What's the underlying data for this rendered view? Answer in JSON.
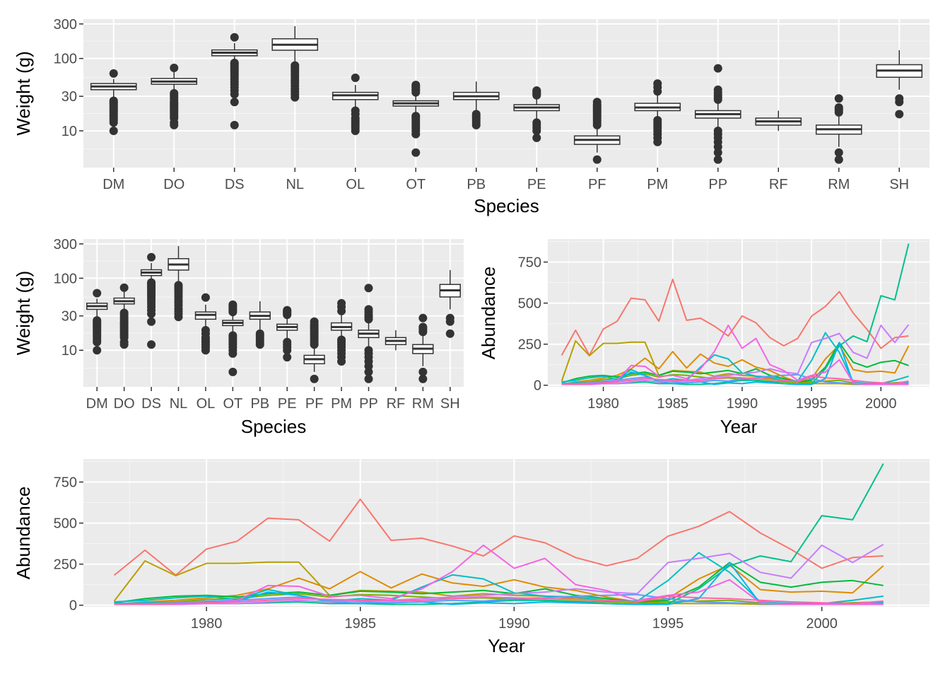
{
  "chart_data": [
    {
      "type": "box",
      "panel": "top",
      "xlabel": "Species",
      "ylabel": "Weight (g)",
      "yscale": "log10",
      "ylim": [
        3.1,
        350
      ],
      "yticks": [
        10,
        30,
        100,
        300
      ],
      "ytick_labels": [
        "10",
        "30",
        "100",
        "300"
      ],
      "categories": [
        "DM",
        "DO",
        "DS",
        "NL",
        "OL",
        "OT",
        "PB",
        "PE",
        "PF",
        "PM",
        "PP",
        "RF",
        "RM",
        "SH"
      ],
      "boxes": [
        {
          "q1": 37,
          "median": 41,
          "q3": 45,
          "lower": 27,
          "upper": 52,
          "outliers": [
            62,
            26,
            25,
            24,
            23,
            22,
            21,
            20,
            19,
            18,
            17,
            16,
            15,
            14,
            13,
            10
          ]
        },
        {
          "q1": 44,
          "median": 48,
          "q3": 53,
          "lower": 34,
          "upper": 65,
          "outliers": [
            74,
            33,
            31,
            29,
            27,
            25,
            24,
            23,
            22,
            21,
            20,
            19,
            18,
            17,
            16,
            15,
            13,
            12
          ]
        },
        {
          "q1": 109,
          "median": 120,
          "q3": 131,
          "lower": 88,
          "upper": 163,
          "outliers": [
            196,
            87,
            84,
            80,
            76,
            72,
            68,
            64,
            60,
            56,
            52,
            48,
            44,
            40,
            36,
            32,
            25,
            12
          ]
        },
        {
          "q1": 130,
          "median": 155,
          "q3": 187,
          "lower": 85,
          "upper": 280,
          "outliers": [
            80,
            75,
            70,
            65,
            60,
            55,
            50,
            46,
            42,
            38,
            35,
            32,
            29
          ]
        },
        {
          "q1": 27,
          "median": 31,
          "q3": 34,
          "lower": 21,
          "upper": 43,
          "outliers": [
            54,
            19,
            17,
            15,
            14,
            13,
            12,
            11,
            10
          ]
        },
        {
          "q1": 22,
          "median": 24,
          "q3": 26,
          "lower": 17,
          "upper": 32,
          "outliers": [
            43,
            41,
            39,
            37,
            36,
            34,
            16,
            15,
            14,
            13,
            12,
            11,
            10,
            9,
            5
          ]
        },
        {
          "q1": 27,
          "median": 30,
          "q3": 34,
          "lower": 19,
          "upper": 48,
          "outliers": [
            17,
            16,
            15,
            14,
            13,
            12
          ]
        },
        {
          "q1": 19,
          "median": 21,
          "q3": 23,
          "lower": 14,
          "upper": 29,
          "outliers": [
            36,
            35,
            34,
            33,
            32,
            31,
            13,
            12,
            11,
            10,
            8
          ]
        },
        {
          "q1": 6.5,
          "median": 7.5,
          "q3": 8.5,
          "lower": 5,
          "upper": 11,
          "outliers": [
            25,
            23,
            22,
            21,
            20,
            19,
            18,
            17,
            16,
            15,
            14,
            13,
            12,
            4
          ]
        },
        {
          "q1": 19,
          "median": 21,
          "q3": 24,
          "lower": 15,
          "upper": 31,
          "outliers": [
            45,
            40,
            35,
            14,
            13,
            12,
            11,
            10,
            9,
            8,
            7
          ]
        },
        {
          "q1": 15,
          "median": 17,
          "q3": 19,
          "lower": 11,
          "upper": 25,
          "outliers": [
            73,
            37,
            34,
            31,
            29,
            27,
            10,
            9,
            8,
            7,
            6,
            5,
            4
          ]
        },
        {
          "q1": 12,
          "median": 13.5,
          "q3": 15,
          "lower": 10,
          "upper": 19,
          "outliers": []
        },
        {
          "q1": 9,
          "median": 10.5,
          "q3": 12,
          "lower": 6,
          "upper": 16,
          "outliers": [
            28,
            21,
            20,
            19,
            18,
            5,
            4
          ]
        },
        {
          "q1": 55,
          "median": 68,
          "q3": 82,
          "lower": 37,
          "upper": 130,
          "outliers": [
            28,
            25,
            17
          ]
        }
      ]
    },
    {
      "type": "box",
      "panel": "middle-left",
      "xlabel": "Species",
      "ylabel": "Weight (g)",
      "same_data_as_panel": "top"
    },
    {
      "type": "line",
      "panel": "middle-right",
      "xlabel": "Year",
      "ylabel": "Abundance",
      "xlim": [
        1976,
        2003.5
      ],
      "ylim": [
        -10,
        890
      ],
      "xticks": [
        1980,
        1985,
        1990,
        1995,
        2000
      ],
      "yticks": [
        0,
        250,
        500,
        750
      ],
      "x": [
        1977,
        1978,
        1979,
        1980,
        1981,
        1982,
        1983,
        1984,
        1985,
        1986,
        1987,
        1988,
        1989,
        1990,
        1991,
        1992,
        1993,
        1994,
        1995,
        1996,
        1997,
        1998,
        1999,
        2000,
        2001,
        2002
      ],
      "series": [
        {
          "color": "#F8766D",
          "values": [
            182,
            335,
            183,
            342,
            390,
            530,
            520,
            390,
            645,
            395,
            408,
            360,
            300,
            422,
            380,
            290,
            240,
            285,
            420,
            480,
            570,
            440,
            340,
            225,
            290,
            300
          ]
        },
        {
          "color": "#DE8C00",
          "values": [
            5,
            20,
            30,
            45,
            60,
            100,
            165,
            100,
            205,
            105,
            190,
            135,
            115,
            155,
            110,
            90,
            50,
            20,
            40,
            160,
            245,
            95,
            80,
            85,
            75,
            240
          ]
        },
        {
          "color": "#B79F00",
          "values": [
            25,
            270,
            180,
            255,
            255,
            262,
            262,
            60,
            90,
            85,
            80,
            55,
            70,
            60,
            55,
            40,
            25,
            15,
            10,
            10,
            10,
            5,
            5,
            10,
            15,
            20
          ]
        },
        {
          "color": "#7CAE00",
          "values": [
            10,
            15,
            20,
            35,
            40,
            60,
            70,
            50,
            65,
            60,
            50,
            40,
            45,
            35,
            30,
            25,
            20,
            15,
            20,
            25,
            30,
            15,
            10,
            10,
            15,
            20
          ]
        },
        {
          "color": "#00BA38",
          "values": [
            15,
            40,
            55,
            60,
            50,
            70,
            80,
            60,
            85,
            80,
            70,
            80,
            90,
            70,
            100,
            60,
            40,
            20,
            30,
            110,
            260,
            140,
            110,
            140,
            150,
            120
          ]
        },
        {
          "color": "#00C08B",
          "values": [
            5,
            5,
            10,
            10,
            10,
            15,
            20,
            10,
            10,
            5,
            5,
            10,
            20,
            30,
            30,
            20,
            10,
            5,
            10,
            100,
            240,
            300,
            265,
            545,
            520,
            862
          ]
        },
        {
          "color": "#00BFC4",
          "values": [
            20,
            30,
            45,
            55,
            35,
            95,
            60,
            25,
            40,
            30,
            110,
            185,
            160,
            75,
            55,
            50,
            30,
            25,
            150,
            320,
            200,
            20,
            10,
            10,
            30,
            55
          ]
        },
        {
          "color": "#00B4F0",
          "values": [
            10,
            15,
            10,
            20,
            25,
            80,
            60,
            20,
            10,
            15,
            20,
            5,
            15,
            10,
            20,
            15,
            10,
            5,
            5,
            40,
            260,
            10,
            10,
            5,
            10,
            15
          ]
        },
        {
          "color": "#619CFF",
          "values": [
            10,
            10,
            15,
            25,
            30,
            40,
            50,
            30,
            20,
            15,
            20,
            30,
            25,
            40,
            45,
            55,
            60,
            65,
            40,
            20,
            15,
            10,
            5,
            5,
            10,
            10
          ]
        },
        {
          "color": "#C77CFF",
          "values": [
            5,
            5,
            5,
            10,
            10,
            20,
            30,
            20,
            25,
            30,
            40,
            50,
            60,
            70,
            80,
            100,
            80,
            70,
            260,
            285,
            315,
            200,
            165,
            365,
            260,
            370
          ]
        },
        {
          "color": "#F564E3",
          "values": [
            5,
            5,
            5,
            10,
            30,
            120,
            115,
            55,
            60,
            40,
            100,
            205,
            365,
            225,
            285,
            125,
            90,
            30,
            60,
            80,
            155,
            15,
            5,
            5,
            5,
            5
          ]
        },
        {
          "color": "#FF64B0",
          "values": [
            5,
            5,
            10,
            15,
            20,
            30,
            40,
            35,
            30,
            25,
            30,
            40,
            50,
            45,
            40,
            35,
            30,
            20,
            55,
            45,
            40,
            30,
            20,
            15,
            10,
            25
          ]
        }
      ]
    },
    {
      "type": "line",
      "panel": "bottom",
      "xlabel": "Year",
      "ylabel": "Abundance",
      "same_data_as_panel": "middle-right"
    }
  ]
}
